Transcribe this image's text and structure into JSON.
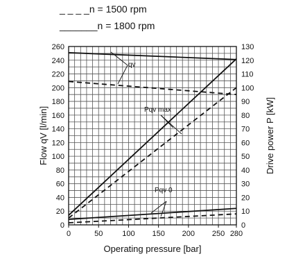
{
  "chart_data": {
    "type": "line",
    "legend": [
      {
        "dash": "_ _ _ _",
        "label": "n = 1500 rpm"
      },
      {
        "dash": "_______",
        "label": "n = 1800 rpm"
      }
    ],
    "xlabel": "Operating pressure  [bar]",
    "ylabel_left": "Flow qV [l/min]",
    "ylabel_right": "Drive power P [kW]",
    "xlim": [
      0,
      280
    ],
    "ylim_left": [
      0,
      260
    ],
    "ylim_right": [
      0,
      130
    ],
    "x_ticks": [
      "0",
      "50",
      "100",
      "150",
      "200",
      "250",
      "280"
    ],
    "y_ticks_left": [
      "0",
      "20",
      "40",
      "60",
      "80",
      "100",
      "120",
      "140",
      "160",
      "180",
      "200",
      "220",
      "240",
      "260"
    ],
    "y_ticks_right": [
      "0",
      "10",
      "20",
      "30",
      "40",
      "50",
      "60",
      "70",
      "80",
      "90",
      "100",
      "110",
      "120",
      "130"
    ],
    "grid": true,
    "annotations": [
      {
        "text": "qv"
      },
      {
        "text": "Pqv max"
      },
      {
        "text": "Pqv 0"
      }
    ],
    "series": [
      {
        "group": "qv",
        "speed": "1800",
        "style": "solid",
        "axis": "left",
        "x": [
          0,
          280
        ],
        "y": [
          251,
          241
        ]
      },
      {
        "group": "qv",
        "speed": "1500",
        "style": "dashed",
        "axis": "left",
        "x": [
          0,
          280
        ],
        "y": [
          209,
          190
        ]
      },
      {
        "group": "Pqv max",
        "speed": "1800",
        "style": "solid",
        "axis": "right",
        "x": [
          0,
          280
        ],
        "y": [
          7,
          121
        ]
      },
      {
        "group": "Pqv max",
        "speed": "1500",
        "style": "dashed",
        "axis": "right",
        "x": [
          0,
          280
        ],
        "y": [
          5,
          100
        ]
      },
      {
        "group": "Pqv 0",
        "speed": "1800",
        "style": "solid",
        "axis": "right",
        "x": [
          0,
          280
        ],
        "y": [
          4,
          12
        ]
      },
      {
        "group": "Pqv 0",
        "speed": "1500",
        "style": "dashed",
        "axis": "right",
        "x": [
          0,
          280
        ],
        "y": [
          1.5,
          8
        ]
      }
    ]
  }
}
